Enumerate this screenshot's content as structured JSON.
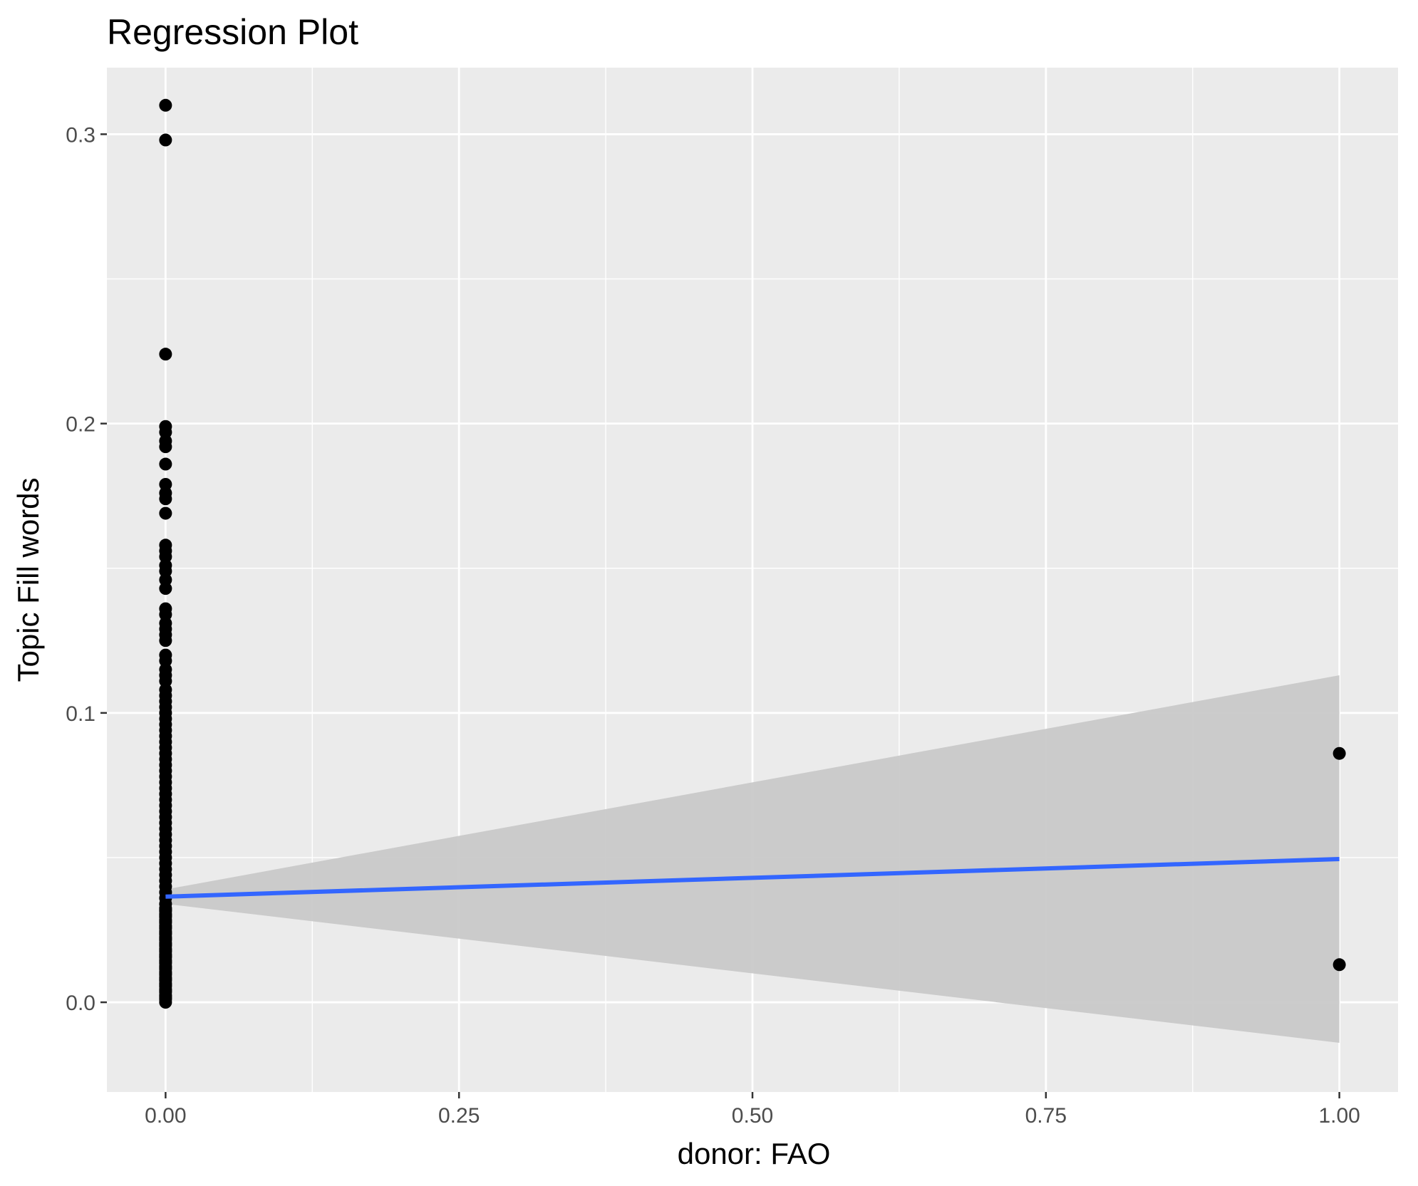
{
  "chart_data": {
    "type": "scatter",
    "title": "Regression Plot",
    "xlabel": "donor: FAO",
    "ylabel": "Topic Fill words",
    "xlim": [
      -0.05,
      1.05
    ],
    "ylim": [
      -0.031,
      0.323
    ],
    "x_ticks": [
      "0.00",
      "0.25",
      "0.50",
      "0.75",
      "1.00"
    ],
    "x_tick_values": [
      0,
      0.25,
      0.5,
      0.75,
      1.0
    ],
    "y_ticks": [
      "0.0",
      "0.1",
      "0.2",
      "0.3"
    ],
    "y_tick_values": [
      0,
      0.1,
      0.2,
      0.3
    ],
    "grid": true,
    "legend": "none",
    "colors": {
      "panel": "#ebebeb",
      "grid": "#ffffff",
      "points": "#000000",
      "fit_line": "#3366ff",
      "confidence_band": "#c8c8c8"
    },
    "points": {
      "x": [
        0,
        0,
        0,
        0,
        0,
        0,
        0,
        0,
        0,
        0,
        0,
        0,
        0,
        0,
        0,
        0,
        0,
        0,
        0,
        0,
        0,
        0,
        0,
        0,
        0,
        0,
        0,
        0,
        0,
        0,
        0,
        0,
        0,
        0,
        0,
        0,
        0,
        0,
        0,
        0,
        0,
        0,
        0,
        0,
        0,
        0,
        0,
        0,
        0,
        0,
        0,
        0,
        0,
        0,
        0,
        0,
        0,
        0,
        0,
        0,
        0,
        0,
        0,
        0,
        0,
        0,
        0,
        0,
        0,
        0,
        0,
        0,
        0,
        0,
        0,
        0,
        0,
        0,
        0,
        0,
        0,
        0,
        0,
        0,
        0,
        0,
        0,
        0,
        0,
        0,
        0,
        0,
        0,
        0,
        0,
        0,
        0,
        0,
        0,
        0,
        0,
        0,
        0,
        0,
        0,
        0,
        0,
        0,
        0,
        0,
        0,
        0,
        0,
        0,
        0,
        0,
        0,
        0,
        1,
        1
      ],
      "y": [
        0.31,
        0.298,
        0.224,
        0.199,
        0.197,
        0.194,
        0.192,
        0.186,
        0.179,
        0.176,
        0.174,
        0.169,
        0.158,
        0.156,
        0.154,
        0.151,
        0.149,
        0.146,
        0.143,
        0.136,
        0.134,
        0.131,
        0.129,
        0.127,
        0.125,
        0.12,
        0.118,
        0.115,
        0.113,
        0.111,
        0.108,
        0.106,
        0.104,
        0.102,
        0.1,
        0.098,
        0.096,
        0.094,
        0.092,
        0.09,
        0.088,
        0.086,
        0.084,
        0.082,
        0.08,
        0.078,
        0.076,
        0.074,
        0.072,
        0.07,
        0.068,
        0.066,
        0.064,
        0.062,
        0.06,
        0.058,
        0.056,
        0.054,
        0.052,
        0.05,
        0.048,
        0.046,
        0.044,
        0.042,
        0.04,
        0.038,
        0.036,
        0.034,
        0.032,
        0.03,
        0.028,
        0.026,
        0.024,
        0.022,
        0.02,
        0.018,
        0.016,
        0.014,
        0.012,
        0.01,
        0.008,
        0.006,
        0.004,
        0.002,
        0.001,
        0,
        0.0015,
        0.0025,
        0.0035,
        0.0045,
        0.0055,
        0.0065,
        0.0075,
        0.0085,
        0.0095,
        0.0105,
        0.0115,
        0.0125,
        0.0135,
        0.0145,
        0.0155,
        0.0165,
        0.0175,
        0.0185,
        0.0195,
        0.0205,
        0.0215,
        0.0225,
        0.0235,
        0.0245,
        0.0255,
        0.0265,
        0.0275,
        0.0285,
        0.0295,
        0.0305,
        0.0315,
        0.0325,
        0.086,
        0.013
      ]
    },
    "fit_line": {
      "x": [
        0,
        1
      ],
      "y": [
        0.0365,
        0.0495
      ]
    },
    "confidence_band": {
      "x": [
        0,
        1
      ],
      "lower": [
        0.034,
        -0.014
      ],
      "upper": [
        0.039,
        0.113
      ]
    }
  }
}
